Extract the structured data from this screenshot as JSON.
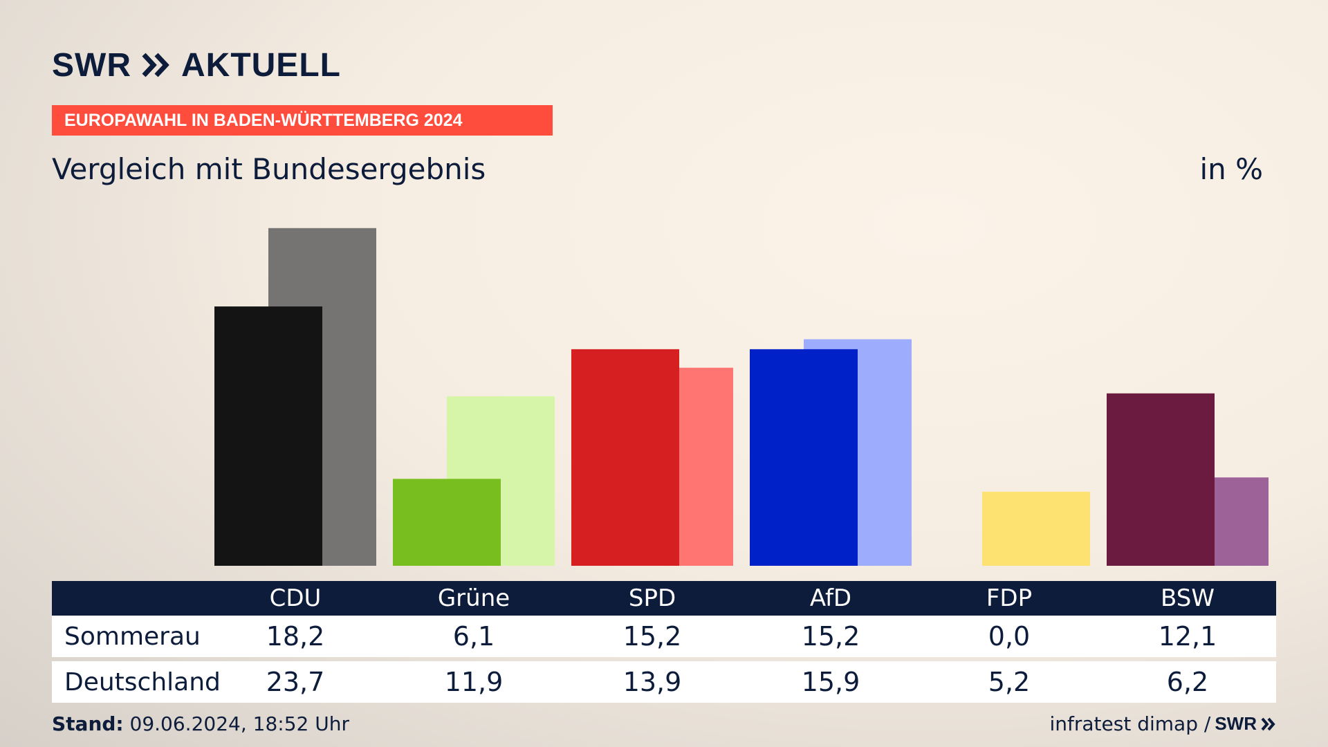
{
  "header": {
    "logo_swr": "SWR",
    "logo_aktuell": "AKTUELL",
    "banner": "EUROPAWAHL IN BADEN-WÜRTTEMBERG 2024",
    "subtitle": "Vergleich mit Bundesergebnis",
    "unit": "in %"
  },
  "colors": {
    "navy": "#0c1c3a",
    "banner": "#ff4d3d"
  },
  "chart_data": {
    "type": "bar",
    "title": "Vergleich mit Bundesergebnis",
    "unit": "in %",
    "categories": [
      "CDU",
      "Grüne",
      "SPD",
      "AfD",
      "FDP",
      "BSW"
    ],
    "series": [
      {
        "name": "Sommerau",
        "values": [
          18.2,
          6.1,
          15.2,
          15.2,
          0.0,
          12.1
        ],
        "colors": [
          "#141414",
          "#78be1e",
          "#d51f21",
          "#0021c8",
          "#fde272",
          "#6b1a40"
        ]
      },
      {
        "name": "Deutschland",
        "values": [
          23.7,
          11.9,
          13.9,
          15.9,
          5.2,
          6.2
        ],
        "colors": [
          "#767472",
          "#d7f5a9",
          "#ff7572",
          "#9eacfd",
          "#fde272",
          "#9d6298"
        ]
      }
    ],
    "ylim": [
      0,
      24
    ]
  },
  "table": {
    "headers": [
      "CDU",
      "Grüne",
      "SPD",
      "AfD",
      "FDP",
      "BSW"
    ],
    "rows": [
      {
        "label": "Sommerau",
        "values": [
          "18,2",
          "6,1",
          "15,2",
          "15,2",
          "0,0",
          "12,1"
        ]
      },
      {
        "label": "Deutschland",
        "values": [
          "23,7",
          "11,9",
          "13,9",
          "15,9",
          "5,2",
          "6,2"
        ]
      }
    ]
  },
  "footer": {
    "stand_label": "Stand:",
    "stand_value": " 09.06.2024, 18:52 Uhr",
    "source": "infratest dimap /",
    "source_logo": "SWR"
  }
}
